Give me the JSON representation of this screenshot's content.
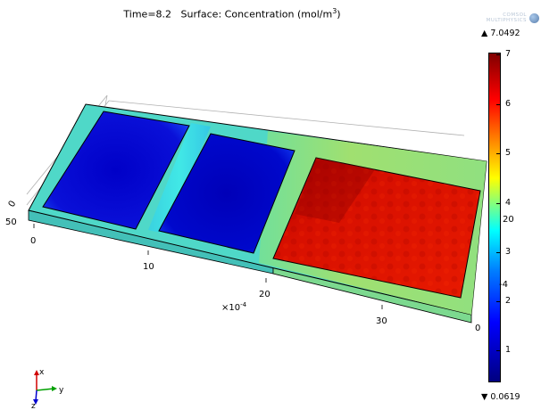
{
  "title": {
    "time_text": "Time=8.2",
    "surface_text": "Surface: Concentration (mol/m",
    "unit_exponent": "3",
    "close_paren": ")"
  },
  "logo": {
    "line1": "COMSOL",
    "line2": "MULTIPHYSICS"
  },
  "colorbar": {
    "max_label": "▲ 7.0492",
    "min_label": "▼ 0.0619",
    "ticks": [
      "7",
      "6",
      "5",
      "4",
      "3",
      "2",
      "1"
    ],
    "colors": [
      "#000080",
      "#0000ff",
      "#00ffff",
      "#ffff00",
      "#ff0000",
      "#800000"
    ]
  },
  "axes": {
    "scale_text": "×10",
    "scale_exponent": "-4",
    "x_ticks": [
      "0",
      "10",
      "20",
      "30"
    ],
    "y_ticks": [
      "0",
      "20"
    ],
    "z_ticks": [
      "50",
      "0"
    ],
    "edge_tick": "0"
  },
  "triad": {
    "x": "x",
    "y": "y",
    "z": "z"
  }
}
